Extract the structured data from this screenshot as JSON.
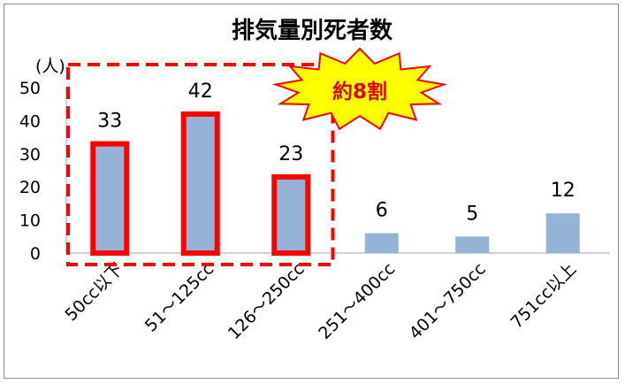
{
  "chart_data": {
    "type": "bar",
    "title": "排気量別死者数",
    "ylabel": "(人)",
    "ylim": [
      0,
      50
    ],
    "yticks": [
      0,
      10,
      20,
      30,
      40,
      50
    ],
    "categories": [
      "50cc以下",
      "51～125cc",
      "126～250cc",
      "251～400cc",
      "401～750cc",
      "751cc以上"
    ],
    "values": [
      33,
      42,
      23,
      6,
      5,
      12
    ],
    "highlighted": [
      true,
      true,
      true,
      false,
      false,
      false
    ],
    "grid": false,
    "legend": "none",
    "annotation": "約8割"
  },
  "colors": {
    "bar": "#95b3d7",
    "highlight": "#ff0000",
    "axis": "#a6a6a6",
    "burst_fill": "#ffff00",
    "burst_text": "#e00000"
  }
}
